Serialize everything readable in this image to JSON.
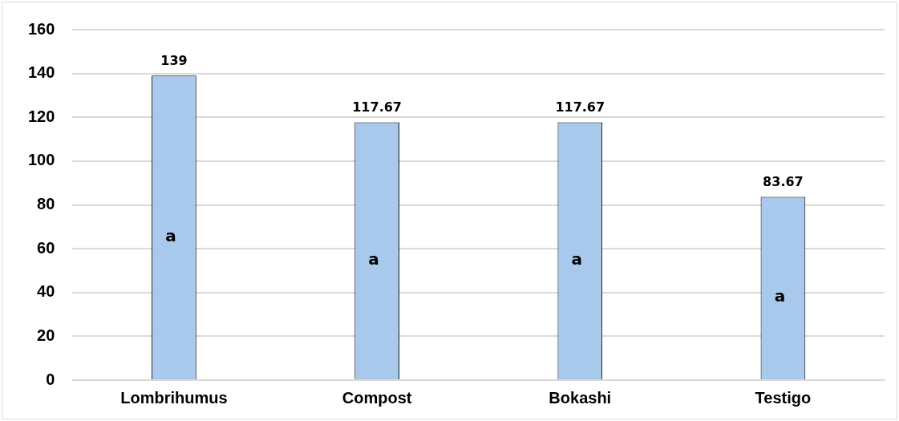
{
  "chart_data": {
    "type": "bar",
    "categories": [
      "Lombrihumus",
      "Compost",
      "Bokashi",
      "Testigo"
    ],
    "values": [
      139,
      117.67,
      117.67,
      83.67
    ],
    "color": "#a8c8ec",
    "ylim": [
      0,
      160
    ],
    "yticks": [
      0,
      20,
      40,
      60,
      80,
      100,
      120,
      140,
      160
    ],
    "grid": "y",
    "legend": false,
    "data_labels": true,
    "annotations": [
      "a",
      "a",
      "a",
      "a"
    ]
  }
}
